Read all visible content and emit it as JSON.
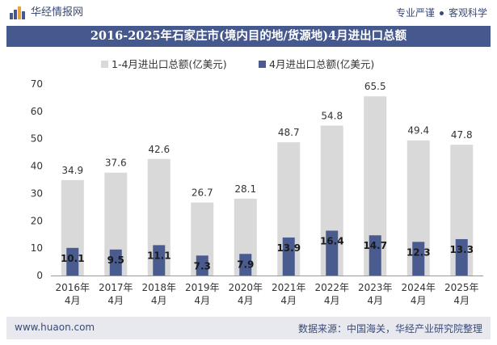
{
  "header": {
    "brand_name": "华经情报网",
    "slogan_left": "专业严谨",
    "slogan_right": "客观科学"
  },
  "footer": {
    "url": "www.huaon.com",
    "source": "数据来源：中国海关，华经产业研究院整理"
  },
  "colors": {
    "title_bar": "#46598e",
    "series_total": "#d9d9d9",
    "series_april": "#4a5b8f",
    "footer_bg": "#e7e9ef"
  },
  "chart_data": {
    "type": "bar",
    "title": "2016-2025年石家庄市(境内目的地/货源地)4月进出口总额",
    "categories": [
      "2016年\n4月",
      "2017年\n4月",
      "2018年\n4月",
      "2019年\n4月",
      "2020年\n4月",
      "2021年\n4月",
      "2022年\n4月",
      "2023年\n4月",
      "2024年\n4月",
      "2025年\n4月"
    ],
    "series": [
      {
        "name": "1-4月进出口总额(亿美元)",
        "values": [
          34.9,
          37.6,
          42.6,
          26.7,
          28.1,
          48.7,
          54.8,
          65.5,
          49.4,
          47.8
        ]
      },
      {
        "name": "4月进出口总额(亿美元)",
        "values": [
          10.1,
          9.5,
          11.1,
          7.3,
          7.9,
          13.9,
          16.4,
          14.7,
          12.3,
          13.3
        ]
      }
    ],
    "ylim": [
      0,
      70
    ],
    "yticks": [
      0,
      10,
      20,
      30,
      40,
      50,
      60,
      70
    ],
    "legend_position": "top-center",
    "grid": false
  }
}
